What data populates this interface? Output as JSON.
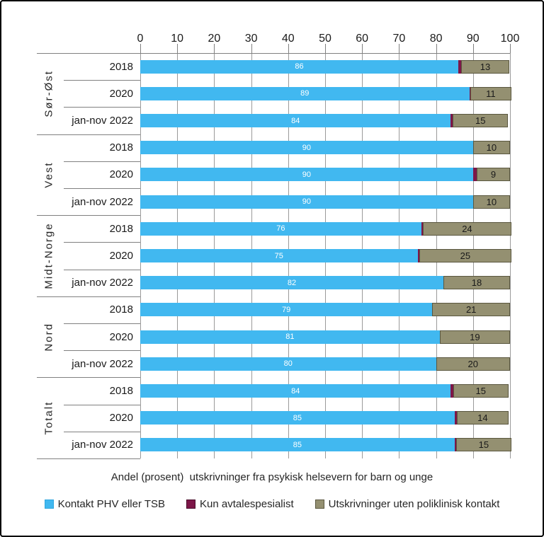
{
  "title": "Andel (prosent)  utskrivninger fra psykisk helsevern for barn og unge",
  "colors": {
    "kontakt_phv": "#41B8F0",
    "kontakt_phv_border": "#2FA6DE",
    "avtalespesialist": "#7D1648",
    "avtalespesialist_border": "#4A0C2B",
    "uten_kontakt": "#949071",
    "uten_kontakt_border": "#5A573F",
    "gridline": "#9a9a9a",
    "separator": "#808080",
    "text": "#262626",
    "bar_value_blue_text": "#ffffff",
    "bar_value_tan_text": "#1a1a1a"
  },
  "legend": {
    "items": [
      {
        "label": "Kontakt PHV eller TSB",
        "color_key": "kontakt_phv"
      },
      {
        "label": "Kun avtalespesialist",
        "color_key": "avtalespesialist"
      },
      {
        "label": "Utskrivninger uten poliklinisk kontakt",
        "color_key": "uten_kontakt"
      }
    ]
  },
  "chart_data": {
    "type": "bar",
    "orientation": "horizontal",
    "stacked": true,
    "title": "Andel (prosent)  utskrivninger fra psykisk helsevern for barn og unge",
    "xlabel": "",
    "ylabel": "",
    "xlim": [
      0,
      100
    ],
    "axis_ticks": [
      "0",
      "10",
      "20",
      "30",
      "40",
      "50",
      "60",
      "70",
      "80",
      "90",
      "100"
    ],
    "grid": "vertical-only",
    "legend_position": "bottom",
    "series_names": [
      "Kontakt PHV eller TSB",
      "Kun avtalespesialist",
      "Utskrivninger uten poliklinisk kontakt"
    ],
    "groups": [
      {
        "label": "Sør-Øst",
        "rows": [
          {
            "label": "2018",
            "values": [
              86,
              0.8,
              13
            ],
            "shown_labels": [
              "86",
              "13"
            ]
          },
          {
            "label": "2020",
            "values": [
              89,
              0.3,
              11
            ],
            "shown_labels": [
              "89",
              "11"
            ]
          },
          {
            "label": "jan-nov 2022",
            "values": [
              84,
              0.5,
              15
            ],
            "shown_labels": [
              "84",
              "15"
            ]
          }
        ]
      },
      {
        "label": "Vest",
        "rows": [
          {
            "label": "2018",
            "values": [
              90,
              0,
              10
            ],
            "shown_labels": [
              "90",
              "10"
            ]
          },
          {
            "label": "2020",
            "values": [
              90,
              1,
              9
            ],
            "shown_labels": [
              "90",
              "9"
            ]
          },
          {
            "label": "jan-nov 2022",
            "values": [
              90,
              0,
              10
            ],
            "shown_labels": [
              "90",
              "10"
            ]
          }
        ]
      },
      {
        "label": "Midt-Norge",
        "rows": [
          {
            "label": "2018",
            "values": [
              76,
              0.4,
              24
            ],
            "shown_labels": [
              "76",
              "24"
            ]
          },
          {
            "label": "2020",
            "values": [
              75,
              0.4,
              25
            ],
            "shown_labels": [
              "75",
              "25"
            ]
          },
          {
            "label": "jan-nov 2022",
            "values": [
              82,
              0,
              18
            ],
            "shown_labels": [
              "82",
              "18"
            ]
          }
        ]
      },
      {
        "label": "Nord",
        "rows": [
          {
            "label": "2018",
            "values": [
              79,
              0,
              21
            ],
            "shown_labels": [
              "79",
              "21"
            ]
          },
          {
            "label": "2020",
            "values": [
              81,
              0,
              19
            ],
            "shown_labels": [
              "81",
              "19"
            ]
          },
          {
            "label": "jan-nov 2022",
            "values": [
              80,
              0,
              20
            ],
            "shown_labels": [
              "80",
              "20"
            ]
          }
        ]
      },
      {
        "label": "Totalt",
        "rows": [
          {
            "label": "2018",
            "values": [
              84,
              0.6,
              15
            ],
            "shown_labels": [
              "84",
              "15"
            ]
          },
          {
            "label": "2020",
            "values": [
              85,
              0.6,
              14
            ],
            "shown_labels": [
              "85",
              "14"
            ]
          },
          {
            "label": "jan-nov 2022",
            "values": [
              85,
              0.4,
              15
            ],
            "shown_labels": [
              "85",
              "15"
            ]
          }
        ]
      }
    ]
  }
}
